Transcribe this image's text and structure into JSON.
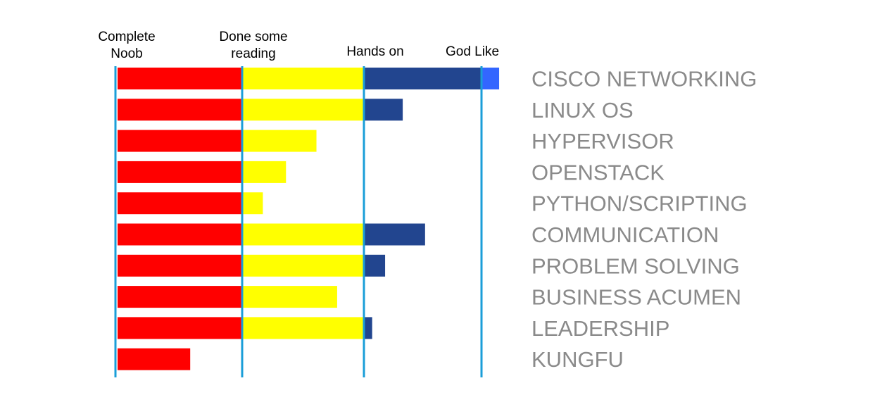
{
  "chart_data": {
    "type": "bar",
    "orientation": "horizontal",
    "stacked": true,
    "title": "",
    "xlabel": "",
    "ylabel": "",
    "levels": [
      {
        "label_lines": [
          "Complete",
          "Noob"
        ],
        "value": 0
      },
      {
        "label_lines": [
          "Done some",
          "reading"
        ],
        "value": 1
      },
      {
        "label_lines": [
          "Hands on"
        ],
        "value": 2
      },
      {
        "label_lines": [
          "God Like"
        ],
        "value": 3
      }
    ],
    "xlim": [
      0,
      3
    ],
    "grid": "vertical level lines",
    "categories": [
      "CISCO NETWORKING",
      "LINUX OS",
      "HYPERVISOR",
      "OPENSTACK",
      "PYTHON/SCRIPTING",
      "COMMUNICATION",
      "PROBLEM SOLVING",
      "BUSINESS ACUMEN",
      "LEADERSHIP",
      "KUNGFU"
    ],
    "values": [
      3.15,
      2.33,
      1.61,
      1.36,
      1.17,
      2.52,
      2.18,
      1.78,
      2.07,
      0.59
    ],
    "segment_colors": [
      "#ff0000",
      "#ffff00",
      "#22458f",
      "#3366ff"
    ],
    "line_color": "#1a9ed8"
  }
}
